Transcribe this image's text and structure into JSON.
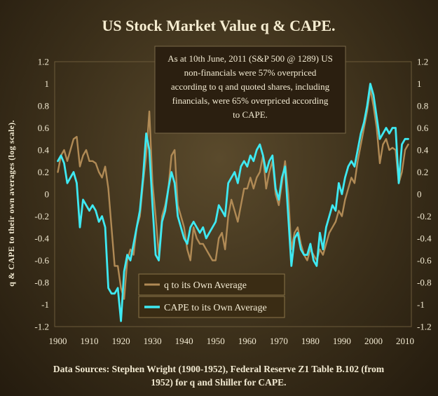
{
  "chart_data": {
    "type": "line",
    "title": "US Stock Market Value q & CAPE.",
    "ylabel": "q & CAPE to their own averages (log scale).",
    "xlim": [
      1899,
      2012
    ],
    "ylim": [
      -1.2,
      1.2
    ],
    "x_ticks": [
      "1900",
      "1910",
      "1920",
      "1930",
      "1940",
      "1950",
      "1960",
      "1970",
      "1980",
      "1990",
      "2000",
      "2010"
    ],
    "y_ticks": [
      "1.2",
      "1",
      "0.8",
      "0.6",
      "0.4",
      "0.2",
      "0",
      "-0.2",
      "-0.4",
      "-0.6",
      "-0.8",
      "-1",
      "-1.2"
    ],
    "grid": false,
    "legend_position": "bottom-left",
    "annotation": [
      "As at 10th June, 2011 (S&P 500 @ 1289) US",
      "non-financials were 57% overpriced",
      "according to q and quoted shares, including",
      "financials, were 65% overpriced according",
      "to CAPE."
    ],
    "source_note": [
      "Data Sources: Stephen Wright (1900-1952), Federal Reserve Z1 Table B.102 (from",
      "1952) for q and  Shiller for CAPE."
    ],
    "series": [
      {
        "name": "q to its Own Average",
        "color": "#b08a55",
        "x": [
          1900,
          1901,
          1902,
          1903,
          1904,
          1905,
          1906,
          1907,
          1908,
          1909,
          1910,
          1911,
          1912,
          1913,
          1914,
          1915,
          1916,
          1917,
          1918,
          1919,
          1920,
          1921,
          1922,
          1923,
          1924,
          1925,
          1926,
          1927,
          1928,
          1929,
          1930,
          1931,
          1932,
          1933,
          1934,
          1935,
          1936,
          1937,
          1938,
          1939,
          1940,
          1941,
          1942,
          1943,
          1944,
          1945,
          1946,
          1947,
          1948,
          1949,
          1950,
          1951,
          1952,
          1953,
          1954,
          1955,
          1956,
          1957,
          1958,
          1959,
          1960,
          1961,
          1962,
          1963,
          1964,
          1965,
          1966,
          1967,
          1968,
          1969,
          1970,
          1971,
          1972,
          1973,
          1974,
          1975,
          1976,
          1977,
          1978,
          1979,
          1980,
          1981,
          1982,
          1983,
          1984,
          1985,
          1986,
          1987,
          1988,
          1989,
          1990,
          1991,
          1992,
          1993,
          1994,
          1995,
          1996,
          1997,
          1998,
          1999,
          2000,
          2001,
          2002,
          2003,
          2004,
          2005,
          2006,
          2007,
          2008,
          2009,
          2010,
          2011
        ],
        "values": [
          0.2,
          0.35,
          0.4,
          0.3,
          0.4,
          0.5,
          0.52,
          0.25,
          0.35,
          0.4,
          0.3,
          0.3,
          0.28,
          0.2,
          0.15,
          0.25,
          0.05,
          -0.3,
          -0.65,
          -0.65,
          -0.85,
          -0.95,
          -0.6,
          -0.5,
          -0.55,
          -0.3,
          -0.2,
          0.1,
          0.35,
          0.75,
          0.1,
          -0.2,
          -0.55,
          -0.2,
          -0.1,
          0.05,
          0.35,
          0.4,
          -0.1,
          -0.2,
          -0.3,
          -0.5,
          -0.6,
          -0.3,
          -0.4,
          -0.45,
          -0.45,
          -0.5,
          -0.55,
          -0.6,
          -0.6,
          -0.4,
          -0.35,
          -0.5,
          -0.2,
          -0.05,
          -0.15,
          -0.25,
          -0.1,
          0.05,
          0.05,
          0.15,
          0.05,
          0.15,
          0.2,
          0.35,
          0.05,
          0.2,
          0.3,
          0.0,
          -0.1,
          0.1,
          0.3,
          0.0,
          -0.5,
          -0.35,
          -0.3,
          -0.45,
          -0.55,
          -0.6,
          -0.5,
          -0.55,
          -0.6,
          -0.5,
          -0.55,
          -0.45,
          -0.35,
          -0.3,
          -0.25,
          -0.15,
          -0.2,
          -0.05,
          0.05,
          0.15,
          0.1,
          0.3,
          0.45,
          0.6,
          0.75,
          0.95,
          0.8,
          0.6,
          0.28,
          0.45,
          0.5,
          0.4,
          0.42,
          0.4,
          0.1,
          0.2,
          0.4,
          0.45
        ]
      },
      {
        "name": "CAPE to its Own Average",
        "color": "#3ee9f2",
        "x": [
          1900,
          1901,
          1902,
          1903,
          1904,
          1905,
          1906,
          1907,
          1908,
          1909,
          1910,
          1911,
          1912,
          1913,
          1914,
          1915,
          1916,
          1917,
          1918,
          1919,
          1920,
          1921,
          1922,
          1923,
          1924,
          1925,
          1926,
          1927,
          1928,
          1929,
          1930,
          1931,
          1932,
          1933,
          1934,
          1935,
          1936,
          1937,
          1938,
          1939,
          1940,
          1941,
          1942,
          1943,
          1944,
          1945,
          1946,
          1947,
          1948,
          1949,
          1950,
          1951,
          1952,
          1953,
          1954,
          1955,
          1956,
          1957,
          1958,
          1959,
          1960,
          1961,
          1962,
          1963,
          1964,
          1965,
          1966,
          1967,
          1968,
          1969,
          1970,
          1971,
          1972,
          1973,
          1974,
          1975,
          1976,
          1977,
          1978,
          1979,
          1980,
          1981,
          1982,
          1983,
          1984,
          1985,
          1986,
          1987,
          1988,
          1989,
          1990,
          1991,
          1992,
          1993,
          1994,
          1995,
          1996,
          1997,
          1998,
          1999,
          2000,
          2001,
          2002,
          2003,
          2004,
          2005,
          2006,
          2007,
          2008,
          2009,
          2010,
          2011
        ],
        "values": [
          0.3,
          0.35,
          0.28,
          0.1,
          0.15,
          0.2,
          0.1,
          -0.3,
          -0.05,
          -0.1,
          -0.15,
          -0.1,
          -0.15,
          -0.25,
          -0.2,
          -0.3,
          -0.85,
          -0.9,
          -0.9,
          -0.85,
          -1.15,
          -0.7,
          -0.55,
          -0.6,
          -0.45,
          -0.3,
          -0.15,
          0.15,
          0.55,
          0.4,
          -0.1,
          -0.55,
          -0.6,
          -0.25,
          -0.15,
          0.05,
          0.2,
          0.1,
          -0.2,
          -0.3,
          -0.4,
          -0.45,
          -0.3,
          -0.25,
          -0.3,
          -0.35,
          -0.3,
          -0.4,
          -0.35,
          -0.3,
          -0.25,
          -0.1,
          -0.15,
          -0.2,
          0.1,
          0.15,
          0.2,
          0.1,
          0.25,
          0.3,
          0.25,
          0.35,
          0.3,
          0.4,
          0.45,
          0.35,
          0.2,
          0.3,
          0.35,
          0.05,
          -0.05,
          0.15,
          0.25,
          -0.2,
          -0.65,
          -0.4,
          -0.35,
          -0.5,
          -0.55,
          -0.55,
          -0.45,
          -0.6,
          -0.65,
          -0.35,
          -0.5,
          -0.3,
          -0.2,
          -0.1,
          -0.15,
          0.1,
          0.0,
          0.15,
          0.25,
          0.3,
          0.25,
          0.4,
          0.55,
          0.65,
          0.8,
          1.0,
          0.9,
          0.7,
          0.5,
          0.55,
          0.6,
          0.55,
          0.6,
          0.6,
          0.1,
          0.45,
          0.5,
          0.5
        ]
      }
    ]
  }
}
